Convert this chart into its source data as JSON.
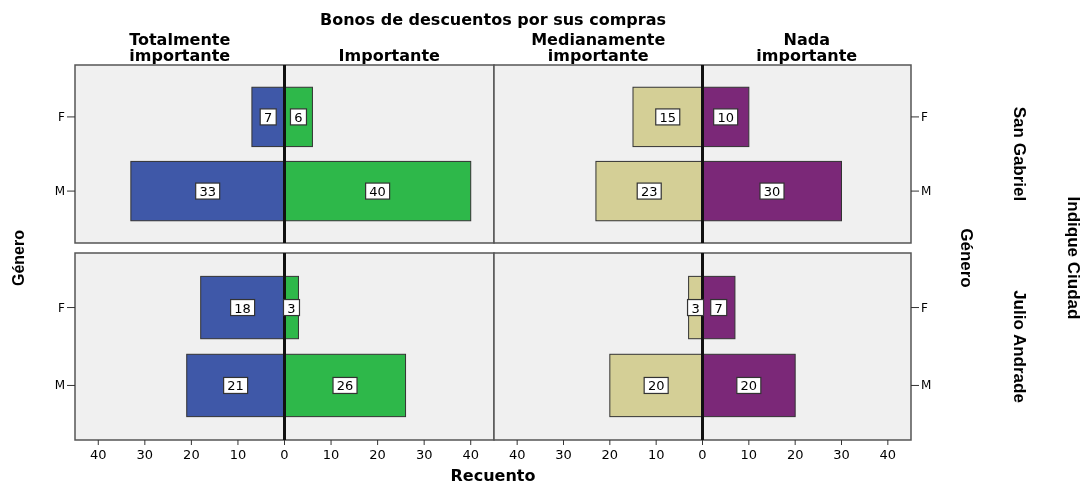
{
  "chart_data": [
    {
      "type": "bar",
      "orientation": "horizontal",
      "title": "Bonos de descuentos por sus compras",
      "ylabel": "Género",
      "categories": [
        "F",
        "M"
      ],
      "xlim": [
        -45,
        45
      ],
      "tick_labels": "y",
      "series": [
        {
          "name": "Totalmente importante",
          "color": "#3f58a8",
          "base": [
            -7,
            -33
          ],
          "values": [
            7,
            33
          ]
        },
        {
          "name": "Importante",
          "color": "#2eb84a",
          "values": [
            6,
            40
          ]
        }
      ],
      "data_labels": true
    },
    {
      "type": "bar",
      "orientation": "horizontal",
      "y2label": "Género",
      "annotations": [
        "San Gabriel",
        "Indique Ciudad"
      ],
      "categories": [
        "F",
        "M"
      ],
      "xlim": [
        -45,
        45
      ],
      "tick_labels": "y",
      "series": [
        {
          "name": "Medianamente importante",
          "color": "#d4cf96",
          "base": [
            -15,
            -23
          ],
          "values": [
            15,
            23
          ]
        },
        {
          "name": "Nada importante",
          "color": "#7b2878",
          "values": [
            10,
            30
          ]
        }
      ],
      "data_labels": true
    },
    {
      "type": "bar",
      "orientation": "horizontal",
      "xlabel": "Recuento",
      "categories": [
        "F",
        "M"
      ],
      "xlim": [
        -45,
        45
      ],
      "xticks": [
        {
          "value": -40,
          "label": "40"
        },
        {
          "value": -30,
          "label": "30"
        },
        {
          "value": -20,
          "label": "20"
        },
        {
          "value": -10,
          "label": "10"
        },
        0,
        10,
        20,
        30,
        40
      ],
      "series": [
        {
          "color": "#3f58a8",
          "base": [
            -18,
            -21
          ],
          "values": [
            18,
            21
          ]
        },
        {
          "color": "#2eb84a",
          "values": [
            3,
            26
          ]
        }
      ],
      "data_labels": true
    },
    {
      "type": "bar",
      "orientation": "horizontal",
      "annotations": [
        "Julio Andrade"
      ],
      "categories": [
        "F",
        "M"
      ],
      "xlim": [
        -45,
        45
      ],
      "xticks": [
        {
          "value": -40,
          "label": "40"
        },
        {
          "value": -30,
          "label": "30"
        },
        {
          "value": -20,
          "label": "20"
        },
        {
          "value": -10,
          "label": "10"
        },
        0,
        10,
        20,
        30,
        40
      ],
      "series": [
        {
          "color": "#d4cf96",
          "base": [
            -3,
            -20
          ],
          "values": [
            3,
            20
          ]
        },
        {
          "color": "#7b2878",
          "values": [
            7,
            20
          ]
        }
      ],
      "data_labels": true
    }
  ]
}
